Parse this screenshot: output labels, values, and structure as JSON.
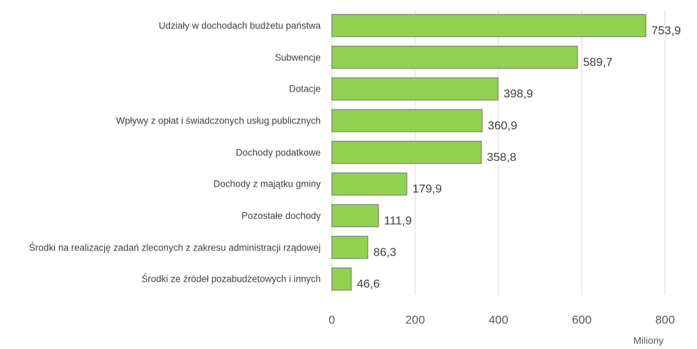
{
  "chart_data": {
    "type": "bar",
    "orientation": "horizontal",
    "categories": [
      "Udziały w dochodach budżetu państwa",
      "Subwencje",
      "Dotacje",
      "Wpływy z opłat i świadczonych usług publicznych",
      "Dochody podatkowe",
      "Dochody z majątku gminy",
      "Pozostałe dochody",
      "Środki na realizację zadań zleconych z zakresu administracji rządowej",
      "Środki ze źródeł pozabudżetowych i innych"
    ],
    "values": [
      753.9,
      589.7,
      398.9,
      360.9,
      358.8,
      179.9,
      111.9,
      86.3,
      46.6
    ],
    "value_labels": [
      "753,9",
      "589,7",
      "398,9",
      "360,9",
      "358,8",
      "179,9",
      "111,9",
      "86,3",
      "46,6"
    ],
    "color": "#92d050",
    "xlim": [
      0,
      800
    ],
    "xticks": [
      0,
      200,
      400,
      600,
      800
    ],
    "grid": true,
    "x_axis_label": "Miliony"
  }
}
